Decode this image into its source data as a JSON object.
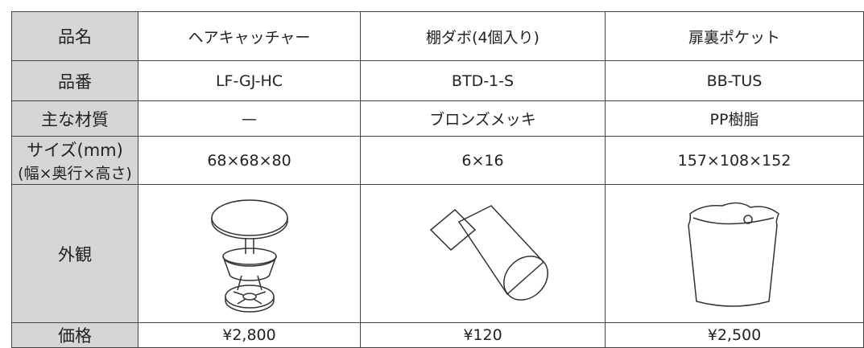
{
  "table": {
    "rows": [
      {
        "label": [
          "品名"
        ],
        "cells": [
          "ヘアキャッチャー",
          "棚ダボ(4個入り)",
          "扉裏ポケット"
        ]
      },
      {
        "label": [
          "品番"
        ],
        "cells": [
          "LF-GJ-HC",
          "BTD-1-S",
          "BB-TUS"
        ]
      },
      {
        "label": [
          "主な材質"
        ],
        "cells": [
          "—",
          "ブロンズメッキ",
          "PP樹脂"
        ]
      },
      {
        "label": [
          "サイズ(mm)",
          "(幅×奥行×高さ)"
        ],
        "cells": [
          "68×68×80",
          "6×16",
          "157×108×152"
        ]
      },
      {
        "label": [
          "外観"
        ],
        "cells": []
      },
      {
        "label": [
          "価格"
        ],
        "cells": [
          "¥2,800",
          "¥120",
          "¥2,500"
        ]
      }
    ]
  }
}
